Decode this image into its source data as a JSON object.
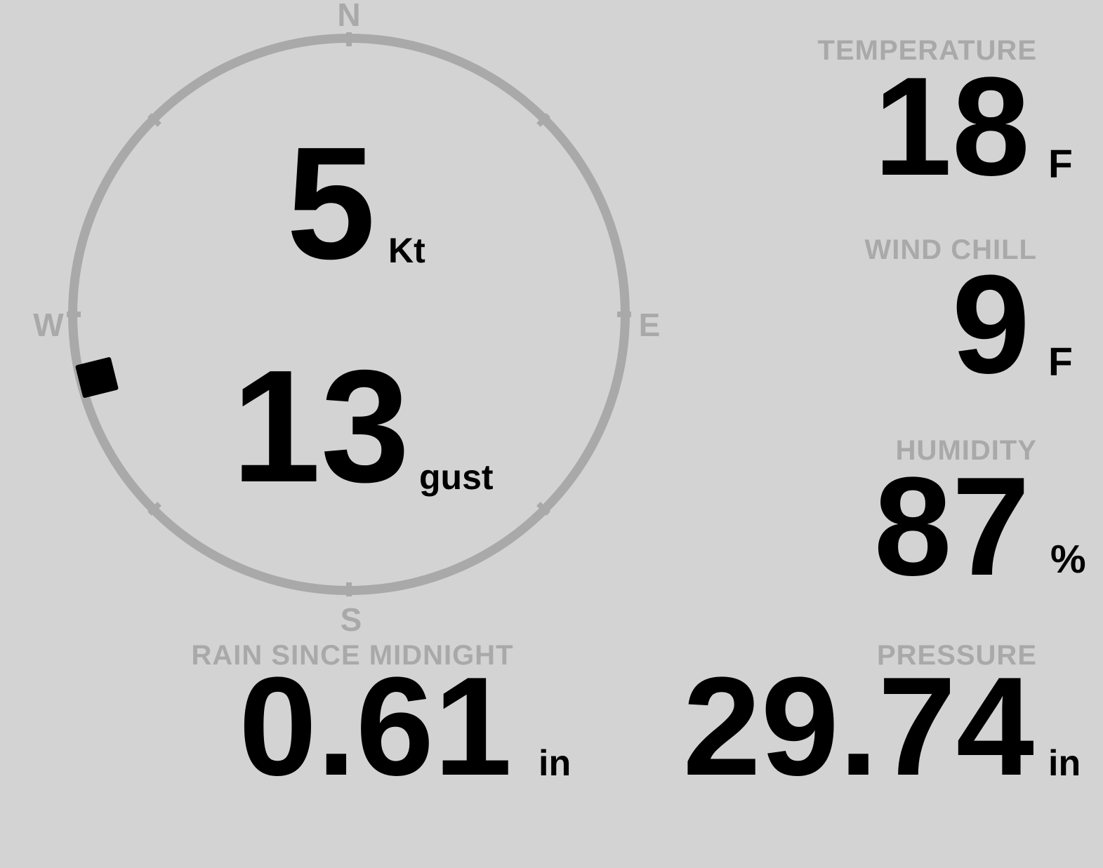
{
  "colors": {
    "background": "#d3d3d3",
    "muted": "#a9a9a9",
    "value_text": "#000000"
  },
  "compass": {
    "cardinal": {
      "north": "N",
      "east": "E",
      "south": "S",
      "west": "W"
    },
    "wind_speed": {
      "value": "5",
      "unit": "Kt"
    },
    "wind_gust": {
      "value": "13",
      "unit": "gust"
    },
    "wind_direction_deg": 256
  },
  "metrics": {
    "temperature": {
      "label": "TEMPERATURE",
      "value": "18",
      "unit": "F"
    },
    "wind_chill": {
      "label": "WIND CHILL",
      "value": "9",
      "unit": "F"
    },
    "humidity": {
      "label": "HUMIDITY",
      "value": "87",
      "unit": "%"
    },
    "rain_since_midnight": {
      "label": "RAIN SINCE MIDNIGHT",
      "value": "0.61",
      "unit": "in"
    },
    "pressure": {
      "label": "PRESSURE",
      "value": "29.74",
      "unit": "in"
    }
  }
}
